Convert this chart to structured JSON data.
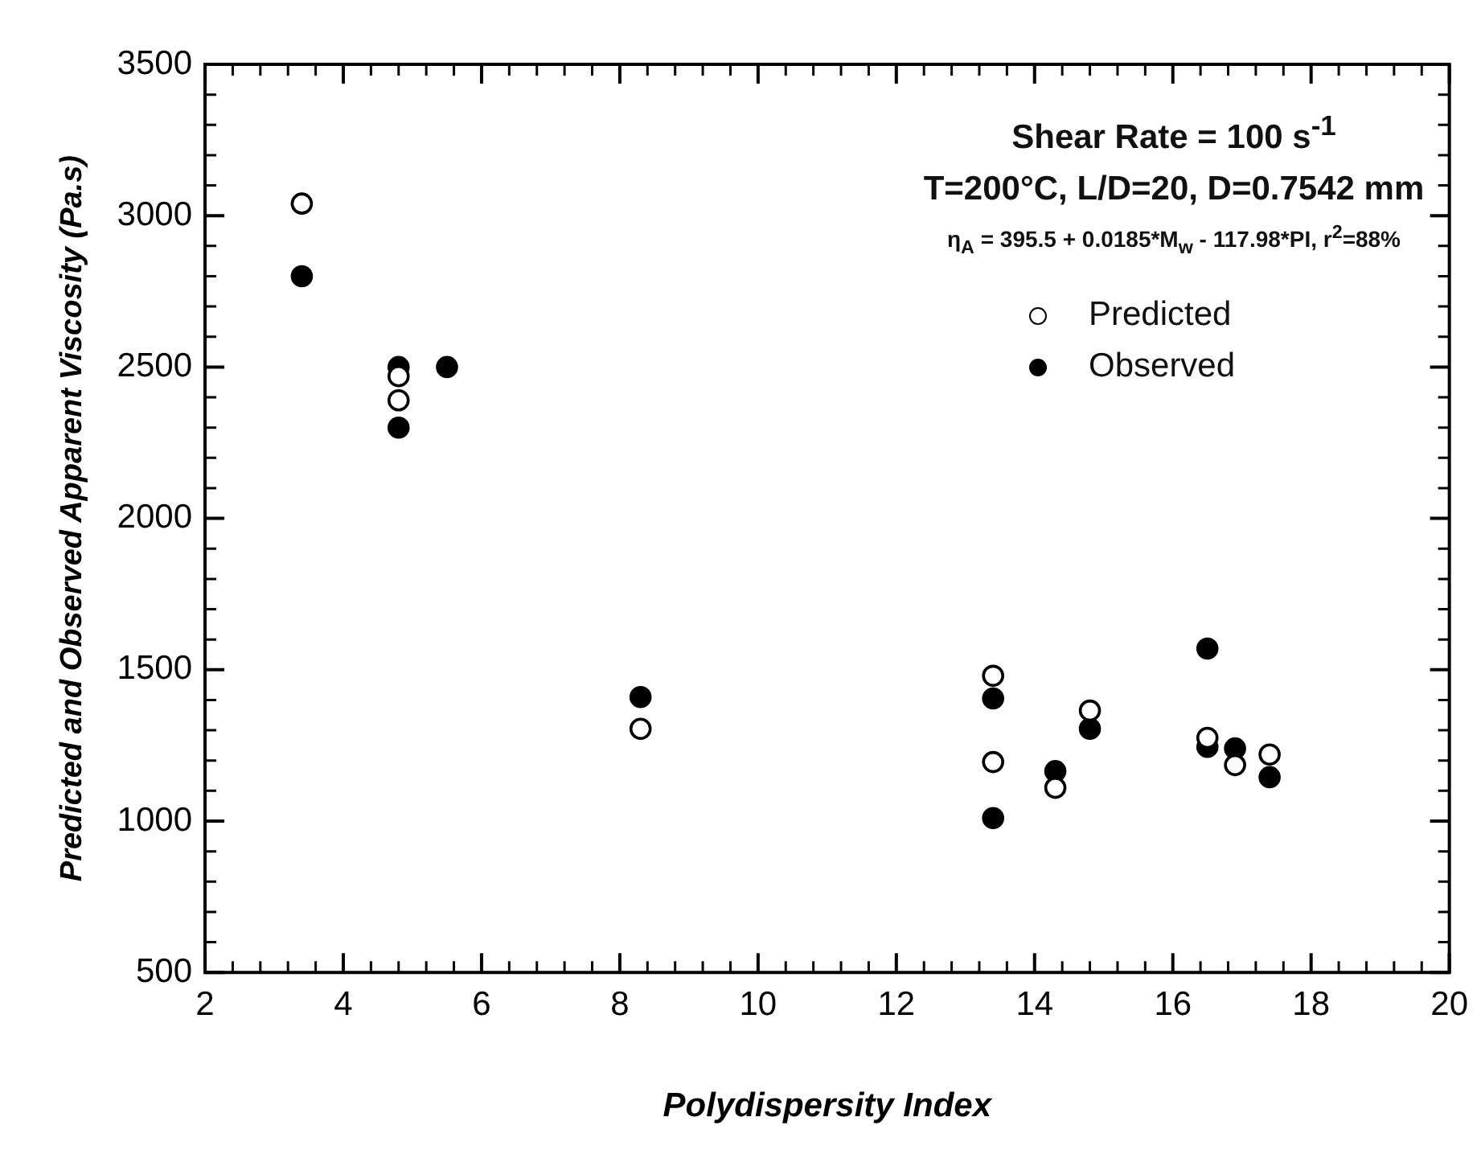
{
  "chart_data": {
    "type": "scatter",
    "xlabel": "Polydispersity Index",
    "ylabel": "Predicted and Observed Apparent Viscosity (Pa.s)",
    "annotations": [
      "Shear Rate = 100 s$^{-1}$",
      "T=200°C, L/D=20, D=0.7542 mm",
      "η$_{A}$ = 395.5 + 0.0185*M$_{w}$ - 117.98*PI, r$^{2}$=88%"
    ],
    "series": [
      {
        "name": "Predicted",
        "color": "#ffffff",
        "x": [
          3.4,
          4.8,
          4.8,
          8.3,
          13.4,
          13.4,
          14.3,
          14.8,
          16.5,
          16.9,
          17.4
        ],
        "values": [
          3040,
          2470,
          2390,
          1305,
          1480,
          1195,
          1110,
          1365,
          1275,
          1185,
          1220
        ]
      },
      {
        "name": "Observed",
        "color": "#000000",
        "x": [
          3.4,
          4.8,
          4.8,
          5.5,
          8.3,
          13.4,
          13.4,
          14.3,
          14.8,
          16.5,
          16.5,
          16.9,
          17.4
        ],
        "values": [
          2800,
          2500,
          2300,
          2500,
          1410,
          1405,
          1010,
          1165,
          1305,
          1570,
          1245,
          1240,
          1145
        ]
      }
    ],
    "xlim": [
      2,
      20
    ],
    "xticks": [
      2,
      4,
      6,
      8,
      10,
      12,
      14,
      16,
      18,
      20
    ],
    "ylim": [
      500,
      3500
    ],
    "yticks": [
      500,
      1000,
      1500,
      2000,
      2500,
      3000,
      3500
    ],
    "grid": false,
    "legend": "top right",
    "marker": "circle"
  }
}
